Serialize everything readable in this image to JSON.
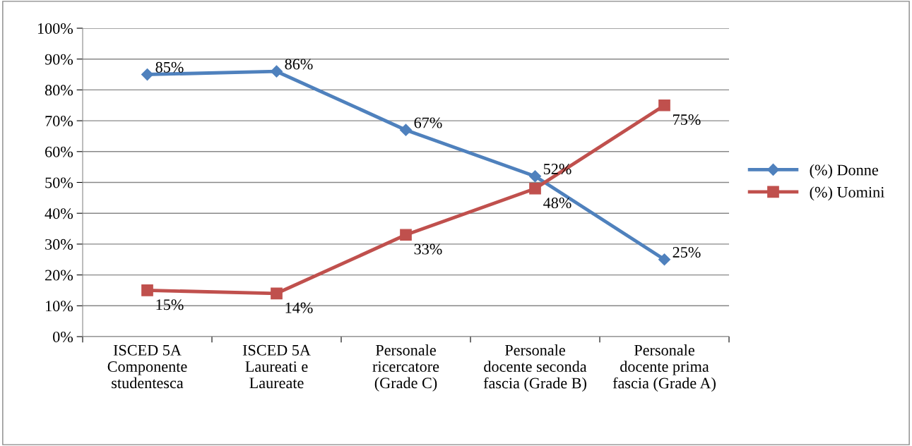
{
  "chart_data": {
    "type": "line",
    "categories": [
      "ISCED 5A Componente studentesca",
      "ISCED 5A Laureati e Laureate",
      "Personale ricercatore (Grade C)",
      "Personale docente seconda fascia (Grade B)",
      "Personale docente prima fascia (Grade A)"
    ],
    "series": [
      {
        "name": "(%) Donne",
        "color": "#4f81bd",
        "marker": "diamond",
        "values": [
          85,
          86,
          67,
          52,
          25
        ],
        "value_labels": [
          "85%",
          "86%",
          "67%",
          "52%",
          "25%"
        ]
      },
      {
        "name": "(%) Uomini",
        "color": "#c0504d",
        "marker": "square",
        "values": [
          15,
          14,
          33,
          48,
          75
        ],
        "value_labels": [
          "15%",
          "14%",
          "33%",
          "48%",
          "75%"
        ]
      }
    ],
    "ylim": [
      0,
      100
    ],
    "yticks": [
      {
        "value": 0,
        "label": "0%"
      },
      {
        "value": 10,
        "label": "10%"
      },
      {
        "value": 20,
        "label": "20%"
      },
      {
        "value": 30,
        "label": "30%"
      },
      {
        "value": 40,
        "label": "40%"
      },
      {
        "value": 50,
        "label": "50%"
      },
      {
        "value": 60,
        "label": "60%"
      },
      {
        "value": 70,
        "label": "70%"
      },
      {
        "value": 80,
        "label": "80%"
      },
      {
        "value": 90,
        "label": "90%"
      },
      {
        "value": 100,
        "label": "100%"
      }
    ],
    "grid": "y",
    "legend": "right",
    "line_style": "solid"
  }
}
